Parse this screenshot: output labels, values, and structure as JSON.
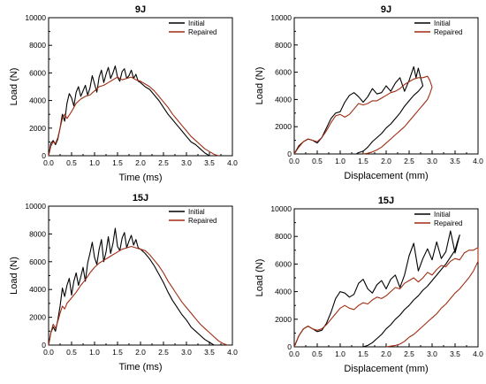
{
  "chart_data": [
    {
      "type": "line",
      "title": "9J",
      "xlabel": "Time (ms)",
      "ylabel": "Load (N)",
      "xlim": [
        0,
        4.0
      ],
      "ylim": [
        0,
        10000
      ],
      "xticks": [
        "0.0",
        "0.5",
        "1.0",
        "1.5",
        "2.0",
        "2.5",
        "3.0",
        "3.5",
        "4.0"
      ],
      "yticks": [
        "0",
        "2000",
        "4000",
        "6000",
        "8000",
        "10000"
      ],
      "legend": "top-right",
      "series": [
        {
          "name": "Initial",
          "color": "#000000",
          "x": [
            0,
            0.05,
            0.1,
            0.15,
            0.2,
            0.25,
            0.3,
            0.35,
            0.4,
            0.45,
            0.5,
            0.55,
            0.6,
            0.65,
            0.7,
            0.75,
            0.8,
            0.85,
            0.9,
            0.95,
            1.0,
            1.05,
            1.1,
            1.15,
            1.2,
            1.25,
            1.3,
            1.35,
            1.4,
            1.45,
            1.5,
            1.55,
            1.6,
            1.65,
            1.7,
            1.75,
            1.8,
            1.85,
            1.9,
            1.95,
            2.0,
            2.1,
            2.2,
            2.3,
            2.4,
            2.5,
            2.6,
            2.7,
            2.8,
            2.9,
            3.0,
            3.1,
            3.2,
            3.3,
            3.4,
            3.5
          ],
          "y": [
            0,
            900,
            1100,
            800,
            1200,
            2000,
            3000,
            2500,
            3800,
            4500,
            4200,
            3600,
            4600,
            5000,
            4300,
            4700,
            5100,
            4400,
            4900,
            5800,
            5200,
            4600,
            5700,
            6200,
            5300,
            5900,
            6400,
            5600,
            6000,
            6500,
            5700,
            5400,
            6100,
            6300,
            5600,
            5800,
            6200,
            5600,
            5900,
            5400,
            5300,
            5000,
            4800,
            4400,
            4000,
            3500,
            3000,
            2600,
            2200,
            1800,
            1400,
            1000,
            800,
            500,
            200,
            0
          ]
        },
        {
          "name": "Repaired",
          "color": "#a02c12",
          "x": [
            0,
            0.05,
            0.1,
            0.15,
            0.2,
            0.25,
            0.3,
            0.35,
            0.4,
            0.5,
            0.6,
            0.7,
            0.8,
            0.9,
            1.0,
            1.1,
            1.2,
            1.3,
            1.4,
            1.5,
            1.6,
            1.7,
            1.8,
            1.9,
            2.0,
            2.1,
            2.2,
            2.3,
            2.4,
            2.5,
            2.6,
            2.7,
            2.8,
            2.9,
            3.0,
            3.1,
            3.2,
            3.3,
            3.4,
            3.5,
            3.6,
            3.7
          ],
          "y": [
            0,
            700,
            1000,
            900,
            1300,
            2000,
            2700,
            3000,
            2700,
            3200,
            3800,
            4100,
            4300,
            4400,
            4700,
            5000,
            5100,
            5300,
            5500,
            5700,
            5500,
            5600,
            5700,
            5500,
            5400,
            5200,
            5000,
            4700,
            4300,
            3900,
            3500,
            3000,
            2600,
            2200,
            1800,
            1400,
            1100,
            800,
            500,
            300,
            100,
            0
          ]
        }
      ]
    },
    {
      "type": "line",
      "title": "9J",
      "xlabel": "Displacement (mm)",
      "ylabel": "Load (N)",
      "xlim": [
        0,
        4.0
      ],
      "ylim": [
        0,
        10000
      ],
      "xticks": [
        "0.0",
        "0.5",
        "1.0",
        "1.5",
        "2.0",
        "2.5",
        "3.0",
        "3.5",
        "4.0"
      ],
      "yticks": [
        "0",
        "2000",
        "4000",
        "6000",
        "8000",
        "10000"
      ],
      "legend": "top-right",
      "series": [
        {
          "name": "Initial",
          "color": "#000000",
          "x": [
            0,
            0.1,
            0.2,
            0.3,
            0.4,
            0.5,
            0.6,
            0.7,
            0.8,
            0.9,
            1.0,
            1.1,
            1.2,
            1.3,
            1.4,
            1.5,
            1.6,
            1.7,
            1.8,
            1.9,
            2.0,
            2.1,
            2.2,
            2.3,
            2.4,
            2.5,
            2.6,
            2.65,
            2.7,
            2.75,
            2.8,
            2.7,
            2.6,
            2.5,
            2.4,
            2.3,
            2.2,
            2.1,
            2.0,
            1.9,
            1.8,
            1.7,
            1.6,
            1.5,
            1.4,
            1.35
          ],
          "y": [
            0,
            600,
            900,
            1100,
            1000,
            800,
            1200,
            1900,
            2600,
            3000,
            3100,
            3800,
            4300,
            4500,
            4200,
            3800,
            4200,
            4800,
            4400,
            4500,
            5000,
            4600,
            5200,
            5600,
            4600,
            5400,
            6400,
            5600,
            6300,
            5600,
            5000,
            4600,
            4300,
            3900,
            3500,
            3000,
            2600,
            2200,
            1900,
            1500,
            1200,
            900,
            500,
            200,
            100,
            0
          ]
        },
        {
          "name": "Repaired",
          "color": "#a02c12",
          "x": [
            0,
            0.1,
            0.2,
            0.3,
            0.4,
            0.5,
            0.6,
            0.7,
            0.8,
            0.9,
            1.0,
            1.1,
            1.2,
            1.3,
            1.4,
            1.5,
            1.6,
            1.7,
            1.8,
            1.9,
            2.0,
            2.1,
            2.2,
            2.3,
            2.4,
            2.5,
            2.6,
            2.7,
            2.8,
            2.9,
            2.95,
            3.0,
            2.95,
            2.9,
            2.8,
            2.7,
            2.6,
            2.5,
            2.4,
            2.3,
            2.2,
            2.1,
            2.0,
            1.9,
            1.8,
            1.7,
            1.6,
            1.5
          ],
          "y": [
            0,
            500,
            900,
            1100,
            1000,
            900,
            1200,
            1700,
            2300,
            2800,
            2900,
            2700,
            2900,
            3300,
            3700,
            3600,
            3700,
            3900,
            3900,
            4100,
            4300,
            4500,
            4600,
            4800,
            5100,
            5300,
            5500,
            5600,
            5600,
            5700,
            5400,
            4900,
            4400,
            4000,
            3600,
            3200,
            2800,
            2400,
            2000,
            1700,
            1400,
            1100,
            800,
            500,
            300,
            150,
            50,
            0
          ]
        }
      ]
    },
    {
      "type": "line",
      "title": "15J",
      "xlabel": "Time (ms)",
      "ylabel": "Load (N)",
      "xlim": [
        0,
        4.0
      ],
      "ylim": [
        0,
        10000
      ],
      "xticks": [
        "0.0",
        "0.5",
        "1.0",
        "1.5",
        "2.0",
        "2.5",
        "3.0",
        "3.5",
        "4.0"
      ],
      "yticks": [
        "0",
        "2000",
        "4000",
        "6000",
        "8000",
        "10000"
      ],
      "legend": "top-right",
      "series": [
        {
          "name": "Initial",
          "color": "#000000",
          "x": [
            0,
            0.05,
            0.1,
            0.15,
            0.2,
            0.25,
            0.3,
            0.35,
            0.4,
            0.45,
            0.5,
            0.55,
            0.6,
            0.65,
            0.7,
            0.75,
            0.8,
            0.85,
            0.9,
            0.95,
            1.0,
            1.05,
            1.1,
            1.15,
            1.2,
            1.25,
            1.3,
            1.35,
            1.4,
            1.45,
            1.5,
            1.55,
            1.6,
            1.65,
            1.7,
            1.75,
            1.8,
            1.85,
            1.9,
            1.95,
            2.0,
            2.1,
            2.2,
            2.3,
            2.4,
            2.5,
            2.6,
            2.7,
            2.8,
            2.9,
            3.0,
            3.1,
            3.2,
            3.3,
            3.4,
            3.5,
            3.6,
            3.7
          ],
          "y": [
            0,
            900,
            1300,
            1000,
            1800,
            2800,
            4100,
            3500,
            4300,
            4800,
            3600,
            4600,
            5200,
            4300,
            4900,
            5600,
            4600,
            5900,
            6600,
            7400,
            6300,
            5800,
            6900,
            7600,
            6000,
            6700,
            7800,
            6600,
            7300,
            8400,
            7100,
            6800,
            7700,
            8100,
            7000,
            7500,
            7900,
            7200,
            7600,
            7000,
            6900,
            6600,
            6200,
            5700,
            5100,
            4500,
            3800,
            3200,
            2700,
            2200,
            1800,
            1300,
            1000,
            700,
            400,
            200,
            0,
            0
          ]
        },
        {
          "name": "Repaired",
          "color": "#a02c12",
          "x": [
            0,
            0.05,
            0.1,
            0.15,
            0.2,
            0.25,
            0.3,
            0.35,
            0.4,
            0.5,
            0.6,
            0.7,
            0.8,
            0.9,
            1.0,
            1.1,
            1.2,
            1.3,
            1.4,
            1.5,
            1.6,
            1.7,
            1.8,
            1.9,
            2.0,
            2.1,
            2.2,
            2.3,
            2.4,
            2.5,
            2.6,
            2.7,
            2.8,
            2.9,
            3.0,
            3.1,
            3.2,
            3.3,
            3.4,
            3.5,
            3.6,
            3.7,
            3.8,
            3.9
          ],
          "y": [
            0,
            900,
            1500,
            1200,
            1700,
            2300,
            2800,
            2600,
            3000,
            3400,
            3800,
            4300,
            4700,
            5200,
            5600,
            5900,
            6100,
            6300,
            6500,
            6700,
            6900,
            7000,
            7100,
            7000,
            6900,
            6800,
            6500,
            6100,
            5700,
            5200,
            4600,
            4100,
            3600,
            3100,
            2700,
            2300,
            1900,
            1500,
            1200,
            900,
            600,
            300,
            100,
            0
          ]
        }
      ]
    },
    {
      "type": "line",
      "title": "15J",
      "xlabel": "Displacement (mm)",
      "ylabel": "Load (N)",
      "xlim": [
        0,
        4.0
      ],
      "ylim": [
        0,
        10000
      ],
      "xticks": [
        "0.0",
        "0.5",
        "1.0",
        "1.5",
        "2.0",
        "2.5",
        "3.0",
        "3.5",
        "4.0"
      ],
      "yticks": [
        "0",
        "2000",
        "4000",
        "6000",
        "8000",
        "10000"
      ],
      "legend": "top-right",
      "series": [
        {
          "name": "Initial",
          "color": "#000000",
          "x": [
            0,
            0.1,
            0.2,
            0.3,
            0.4,
            0.5,
            0.6,
            0.7,
            0.8,
            0.9,
            1.0,
            1.1,
            1.2,
            1.3,
            1.4,
            1.5,
            1.6,
            1.7,
            1.8,
            1.9,
            2.0,
            2.1,
            2.2,
            2.3,
            2.4,
            2.5,
            2.6,
            2.7,
            2.8,
            2.9,
            3.0,
            3.1,
            3.2,
            3.3,
            3.4,
            3.5,
            3.6,
            3.55,
            3.5,
            3.4,
            3.3,
            3.2,
            3.1,
            3.0,
            2.9,
            2.8,
            2.7,
            2.6,
            2.5,
            2.4,
            2.3,
            2.2,
            2.1,
            2.0,
            1.9,
            1.8,
            1.7,
            1.6,
            1.5
          ],
          "y": [
            0,
            800,
            1300,
            1500,
            1300,
            1100,
            1200,
            1700,
            2500,
            3500,
            4000,
            3900,
            3600,
            3800,
            4600,
            4900,
            4200,
            3900,
            4500,
            4800,
            4200,
            4900,
            5200,
            4300,
            5200,
            6600,
            7500,
            5500,
            6400,
            7100,
            6300,
            7600,
            6400,
            6900,
            8400,
            6800,
            8100,
            7600,
            7000,
            6500,
            6000,
            5600,
            5200,
            4800,
            4400,
            4100,
            3700,
            3400,
            3000,
            2700,
            2300,
            2000,
            1600,
            1300,
            900,
            600,
            300,
            100,
            0
          ]
        },
        {
          "name": "Repaired",
          "color": "#a02c12",
          "x": [
            0,
            0.1,
            0.2,
            0.3,
            0.4,
            0.5,
            0.6,
            0.7,
            0.8,
            0.9,
            1.0,
            1.1,
            1.2,
            1.3,
            1.4,
            1.5,
            1.6,
            1.7,
            1.8,
            1.9,
            2.0,
            2.1,
            2.2,
            2.3,
            2.4,
            2.5,
            2.6,
            2.7,
            2.8,
            2.9,
            3.0,
            3.1,
            3.2,
            3.3,
            3.4,
            3.5,
            3.6,
            3.7,
            3.8,
            3.9,
            4.0,
            4.0,
            3.9,
            3.8,
            3.7,
            3.6,
            3.5,
            3.4,
            3.3,
            3.2,
            3.1,
            3.0,
            2.9,
            2.8,
            2.7,
            2.6,
            2.5,
            2.4,
            2.3,
            2.2,
            2.1,
            2.0
          ],
          "y": [
            0,
            800,
            1300,
            1500,
            1300,
            1200,
            1300,
            1600,
            2000,
            2400,
            2800,
            3000,
            2800,
            2700,
            3000,
            3200,
            3100,
            3400,
            3600,
            3500,
            3700,
            4000,
            4300,
            4200,
            4600,
            4800,
            5000,
            4700,
            5000,
            5400,
            5200,
            5600,
            5900,
            5800,
            6200,
            6400,
            6300,
            6800,
            7000,
            7000,
            7200,
            6200,
            5500,
            5000,
            4600,
            4200,
            3900,
            3500,
            3100,
            2800,
            2400,
            2100,
            1800,
            1500,
            1200,
            900,
            700,
            400,
            200,
            100,
            50,
            0
          ]
        }
      ]
    }
  ]
}
